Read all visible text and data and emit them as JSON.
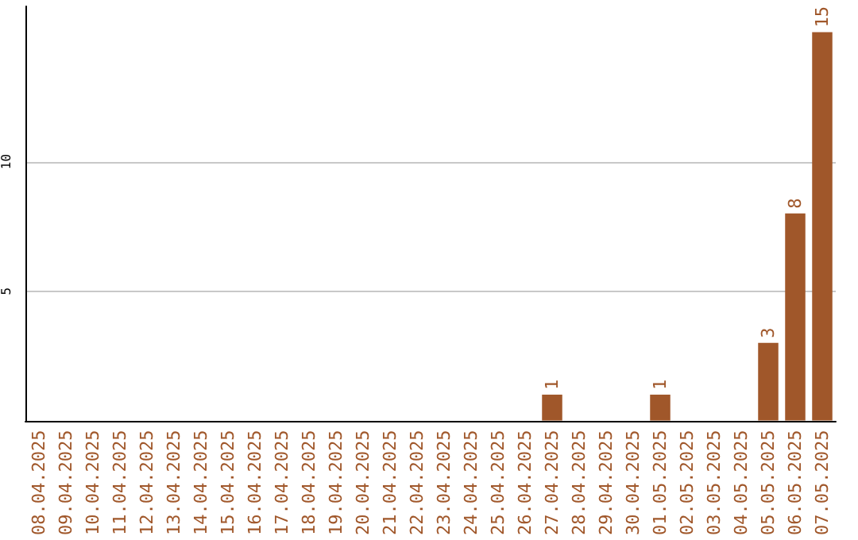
{
  "chart_data": {
    "type": "bar",
    "categories": [
      "08.04.2025",
      "09.04.2025",
      "10.04.2025",
      "11.04.2025",
      "12.04.2025",
      "13.04.2025",
      "14.04.2025",
      "15.04.2025",
      "16.04.2025",
      "17.04.2025",
      "18.04.2025",
      "19.04.2025",
      "20.04.2025",
      "21.04.2025",
      "22.04.2025",
      "23.04.2025",
      "24.04.2025",
      "25.04.2025",
      "26.04.2025",
      "27.04.2025",
      "28.04.2025",
      "29.04.2025",
      "30.04.2025",
      "01.05.2025",
      "02.05.2025",
      "03.05.2025",
      "04.05.2025",
      "05.05.2025",
      "06.05.2025",
      "07.05.2025"
    ],
    "values": [
      0,
      0,
      0,
      0,
      0,
      0,
      0,
      0,
      0,
      0,
      0,
      0,
      0,
      0,
      0,
      0,
      0,
      0,
      0,
      1,
      0,
      0,
      0,
      1,
      0,
      0,
      0,
      3,
      8,
      15
    ],
    "value_labels": [
      null,
      null,
      null,
      null,
      null,
      null,
      null,
      null,
      null,
      null,
      null,
      null,
      null,
      null,
      null,
      null,
      null,
      null,
      null,
      "1",
      null,
      null,
      null,
      "1",
      null,
      null,
      null,
      "3",
      "8",
      "15"
    ],
    "color": "#a0572a",
    "ylim": [
      0,
      16
    ],
    "yticks": [
      5,
      10
    ],
    "grid": "y"
  }
}
